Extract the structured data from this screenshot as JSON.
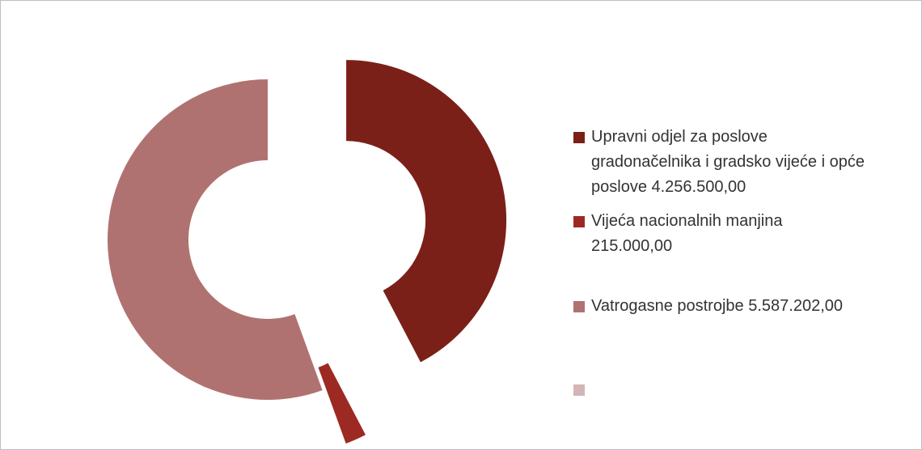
{
  "chart_data": {
    "type": "donut",
    "categories": [
      "Upravni odjel za poslove gradonačelnika i gradsko vijeće i opće poslove",
      "Vijeća nacionalnih manjina",
      "Vatrogasne postrojbe",
      null
    ],
    "values": [
      4256500,
      215000,
      5587202,
      null
    ],
    "value_labels": [
      "4.256.500,00",
      "215.000,00",
      "5.587.202,00",
      null
    ],
    "colors": [
      "#7b2018",
      "#9d2a22",
      "#b07270",
      "#d4b4b4"
    ],
    "legend": "right"
  }
}
